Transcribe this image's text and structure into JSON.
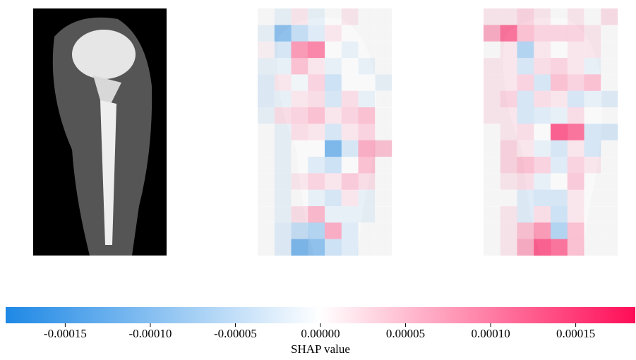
{
  "chart_data": {
    "type": "heatmap",
    "heatmaps": [
      [
        [
          0,
          -2e-05,
          2e-05,
          -2e-05,
          0,
          2e-05,
          0,
          0
        ],
        [
          -2e-05,
          -0.00012,
          -6e-05,
          -3e-05,
          2e-05,
          0,
          0,
          0
        ],
        [
          1e-05,
          -4e-05,
          0.0001,
          0.00012,
          0,
          -2e-05,
          0,
          0
        ],
        [
          -2e-05,
          -2e-05,
          6e-05,
          2e-05,
          -2e-05,
          0,
          -2e-05,
          0
        ],
        [
          -3e-05,
          2e-05,
          -1e-05,
          4e-05,
          -5e-05,
          0,
          0,
          -2e-05
        ],
        [
          -3e-05,
          -2e-05,
          2e-05,
          3e-05,
          -4e-05,
          3e-05,
          -2e-05,
          0
        ],
        [
          -2e-05,
          3e-05,
          4e-05,
          6e-05,
          2e-05,
          4e-05,
          6e-05,
          0
        ],
        [
          0,
          -2e-05,
          3e-05,
          2e-05,
          -4e-05,
          2e-05,
          4e-05,
          0
        ],
        [
          0,
          -2e-05,
          0,
          0,
          -0.00014,
          -4e-05,
          8e-05,
          6e-05
        ],
        [
          0,
          -2e-05,
          0,
          -3e-05,
          -5e-05,
          0,
          6e-05,
          0
        ],
        [
          0,
          -2e-05,
          2e-05,
          4e-05,
          2e-05,
          5e-05,
          3e-05,
          0
        ],
        [
          0,
          -2e-05,
          0,
          -2e-05,
          -4e-05,
          2e-05,
          -2e-05,
          0
        ],
        [
          0,
          -2e-05,
          3e-05,
          7e-05,
          -2e-05,
          -2e-05,
          -2e-05,
          0
        ],
        [
          0,
          -3e-05,
          -6e-05,
          -8e-05,
          8e-05,
          -3e-05,
          0,
          0
        ],
        [
          0,
          -3e-05,
          -0.00014,
          -0.00012,
          -5e-05,
          -3e-05,
          0,
          0
        ]
      ],
      [
        [
          2e-05,
          2e-05,
          4e-05,
          2e-05,
          0,
          2e-05,
          0,
          3e-05
        ],
        [
          8e-05,
          0.00014,
          6e-05,
          4e-05,
          4e-05,
          4e-05,
          2e-05,
          0
        ],
        [
          0,
          2e-05,
          -8e-05,
          2e-05,
          0,
          2e-05,
          2e-05,
          0
        ],
        [
          2e-05,
          2e-05,
          -4e-05,
          3e-05,
          4e-05,
          2e-05,
          -2e-05,
          0
        ],
        [
          2e-05,
          2e-05,
          4e-05,
          -4e-05,
          6e-05,
          4e-05,
          6e-05,
          0
        ],
        [
          2e-05,
          4e-05,
          -4e-05,
          3e-05,
          2e-05,
          -4e-05,
          -2e-05,
          -3e-05
        ],
        [
          2e-05,
          2e-05,
          -4e-05,
          -3e-05,
          -2e-05,
          3e-05,
          0,
          0
        ],
        [
          0,
          2e-05,
          3e-05,
          0,
          0.00016,
          0.00014,
          -4e-05,
          -4e-05
        ],
        [
          0,
          4e-05,
          2e-05,
          -2e-05,
          -4e-05,
          2e-05,
          -4e-05,
          0
        ],
        [
          0,
          4e-05,
          6e-05,
          4e-05,
          -3e-05,
          4e-05,
          2e-05,
          0
        ],
        [
          0,
          2e-05,
          3e-05,
          -2e-05,
          0,
          5e-05,
          0,
          0
        ],
        [
          0,
          0,
          -3e-05,
          -4e-05,
          -4e-05,
          2e-05,
          0,
          0
        ],
        [
          0,
          2e-05,
          -3e-05,
          3e-05,
          -5e-05,
          2e-05,
          0,
          0
        ],
        [
          0,
          2e-05,
          6e-05,
          0.0001,
          -8e-05,
          6e-05,
          0,
          0
        ],
        [
          0,
          2e-05,
          8e-05,
          0.00016,
          0.00014,
          6e-05,
          0,
          0
        ]
      ]
    ],
    "colors": [
      "#1e88e5",
      "#ffffff",
      "#ff0d57"
    ],
    "clim": [
      -0.000185,
      0.000185
    ],
    "ticks": [
      -0.00015,
      {
        "value": -0.0001,
        "label": "-0.00010"
      },
      {
        "value": -5e-05,
        "label": "-0.00005"
      },
      {
        "value": 0,
        "label": "0.00000"
      },
      {
        "value": 5e-05,
        "label": "0.00005"
      },
      {
        "value": 0.0001,
        "label": "0.00010"
      },
      0.00015
    ],
    "label": "SHAP value"
  }
}
